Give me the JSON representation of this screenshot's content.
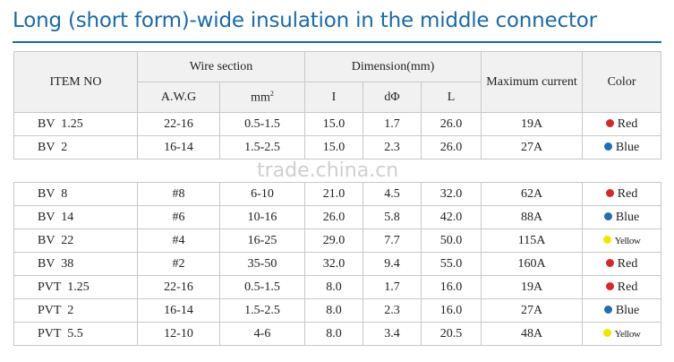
{
  "header": {
    "title": "Long (short form)-wide insulation in the middle connector"
  },
  "table": {
    "headers": {
      "item_no": "ITEM NO",
      "wire_section": "Wire section",
      "awg": "A.W.G",
      "mm": "mm",
      "mm_sup": "2",
      "dimension": "Dimension(mm)",
      "i": "I",
      "d": "dΦ",
      "l": "L",
      "max_current": "Maximum current",
      "color": "Color"
    },
    "rows": [
      {
        "cells": [
          "BV  1.25",
          "22-16",
          "0.5-1.5",
          "15.0",
          "1.7",
          "26.0",
          "19A",
          "Red"
        ],
        "dot": "#d42a2a"
      },
      {
        "cells": [
          "BV  2",
          "16-14",
          "1.5-2.5",
          "15.0",
          "2.3",
          "26.0",
          "27A",
          "Blue"
        ],
        "dot": "#1f6fb5"
      },
      {
        "cells": [
          "BV  8",
          "#8",
          "6-10",
          "21.0",
          "4.5",
          "32.0",
          "62A",
          "Red"
        ],
        "dot": "#d42a2a"
      },
      {
        "cells": [
          "BV  14",
          "#6",
          "10-16",
          "26.0",
          "5.8",
          "42.0",
          "88A",
          "Blue"
        ],
        "dot": "#1f6fb5"
      },
      {
        "cells": [
          "BV  22",
          "#4",
          "16-25",
          "29.0",
          "7.7",
          "50.0",
          "115A",
          "Yellow"
        ],
        "dot": "#f2e600"
      },
      {
        "cells": [
          "BV  38",
          "#2",
          "35-50",
          "32.0",
          "9.4",
          "55.0",
          "160A",
          "Red"
        ],
        "dot": "#d42a2a"
      },
      {
        "cells": [
          "PVT  1.25",
          "22-16",
          "0.5-1.5",
          "8.0",
          "1.7",
          "16.0",
          "19A",
          "Red"
        ],
        "dot": "#d42a2a"
      },
      {
        "cells": [
          "PVT  2",
          "16-14",
          "1.5-2.5",
          "8.0",
          "2.3",
          "16.0",
          "27A",
          "Blue"
        ],
        "dot": "#1f6fb5"
      },
      {
        "cells": [
          "PVT  5.5",
          "12-10",
          "4-6",
          "8.0",
          "3.4",
          "20.5",
          "48A",
          "Yellow"
        ],
        "dot": "#f2e600"
      }
    ]
  },
  "watermark": "trade.china.cn"
}
